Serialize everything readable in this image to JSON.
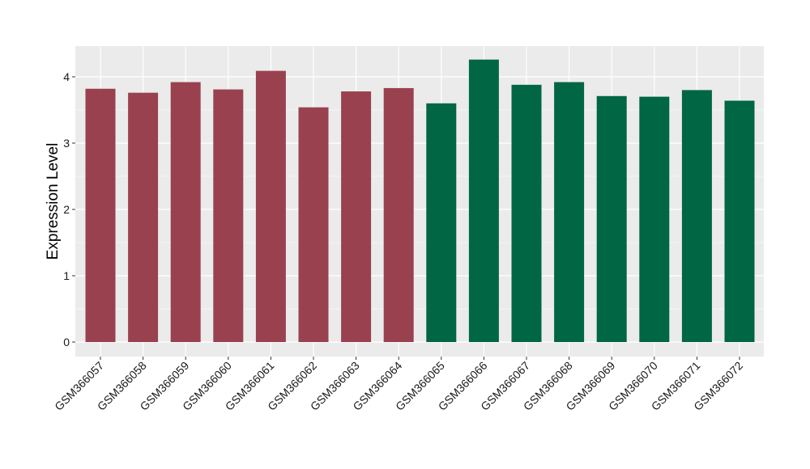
{
  "chart_data": {
    "type": "bar",
    "title": "",
    "xlabel": "",
    "ylabel": "Expression Level",
    "ylim": [
      0,
      4.45
    ],
    "y_ticks": [
      0,
      1,
      2,
      3,
      4
    ],
    "y_tick_labels": [
      "0",
      "1",
      "2",
      "3",
      "4"
    ],
    "grid": true,
    "legend": "none",
    "categories": [
      "GSM366057",
      "GSM366058",
      "GSM366059",
      "GSM366060",
      "GSM366061",
      "GSM366062",
      "GSM366063",
      "GSM366064",
      "GSM366065",
      "GSM366066",
      "GSM366067",
      "GSM366068",
      "GSM366069",
      "GSM366070",
      "GSM366071",
      "GSM366072"
    ],
    "values": [
      3.82,
      3.76,
      3.92,
      3.81,
      4.09,
      3.54,
      3.78,
      3.83,
      3.6,
      4.26,
      3.88,
      3.92,
      3.71,
      3.7,
      3.8,
      3.64
    ],
    "groups": [
      0,
      0,
      0,
      0,
      0,
      0,
      0,
      0,
      1,
      1,
      1,
      1,
      1,
      1,
      1,
      1
    ],
    "group_colors": [
      "#9a4150",
      "#006644"
    ],
    "panel_background": "#ebebeb",
    "grid_color": "#ffffff"
  }
}
